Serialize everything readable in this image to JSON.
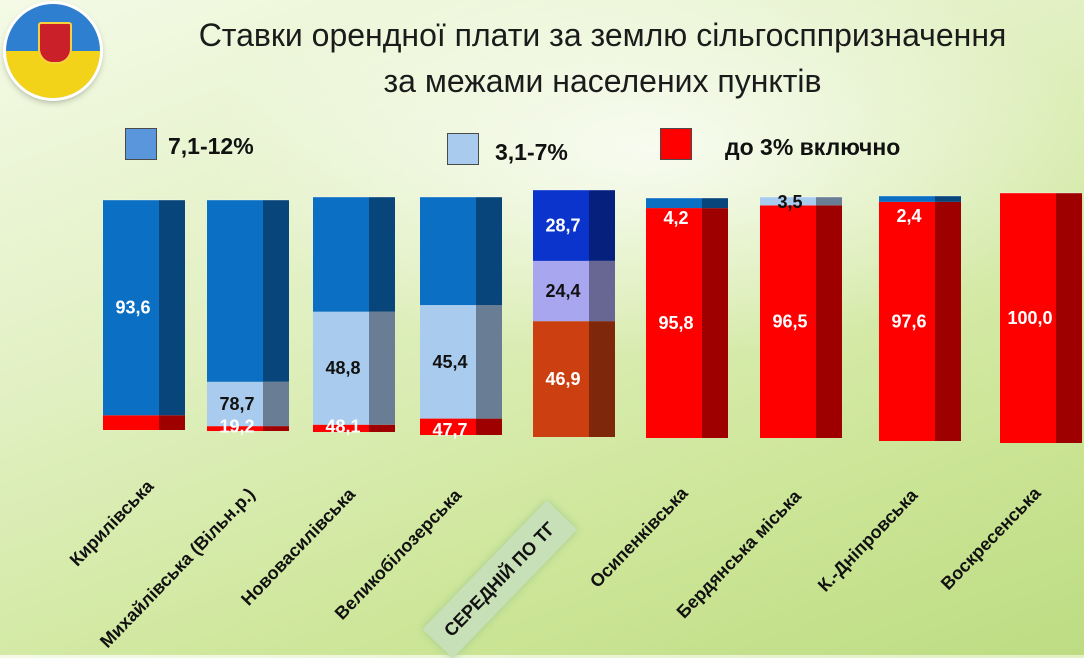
{
  "header": {
    "title_line1": "Ставки орендної плати за землю сільгосппризначення",
    "title_line2": "за межами населених пунктів"
  },
  "colors": {
    "high": "#0b6fc4",
    "mid": "#a9ccee",
    "low": "#ff0000",
    "avg_high": "#0a34cc",
    "avg_mid": "#a7a6ee",
    "avg_low": "#cc3f10"
  },
  "chart_data": {
    "type": "bar",
    "stacked": true,
    "title": "Ставки орендної плати за землю сільгосппризначення за межами населених пунктів",
    "categories": [
      "Кирилівська",
      "Михайлівська (Вільн.р.)",
      "Нововасилівська",
      "Великобілозерська",
      "СЕРЕДНІЙ ПО ТГ",
      "Осипенківська",
      "Бердянська міська",
      "К.-Дніпровська",
      "Воскресенська"
    ],
    "series": [
      {
        "name": "до 3% включно",
        "values": [
          6.4,
          2.1,
          3.1,
          6.9,
          46.9,
          95.8,
          96.5,
          97.6,
          100.0
        ]
      },
      {
        "name": "3,1-7%",
        "values": [
          0,
          19.2,
          48.1,
          47.7,
          24.4,
          0,
          3.5,
          0,
          0
        ]
      },
      {
        "name": "7,1-12%",
        "values": [
          93.6,
          78.7,
          48.8,
          45.4,
          28.7,
          4.2,
          0,
          2.4,
          0
        ]
      }
    ],
    "data_labels": [
      [
        null,
        "93,6"
      ],
      [
        "19,2",
        "78,7"
      ],
      [
        "48,1",
        "48,8"
      ],
      [
        "47,7",
        "45,4"
      ],
      [
        "46,9",
        "24,4",
        "28,7"
      ],
      [
        "95,8",
        "4,2"
      ],
      [
        "96,5",
        "3,5"
      ],
      [
        "97,6",
        "2,4"
      ],
      [
        "100,0"
      ]
    ],
    "legend": [
      {
        "label": "7,1-12%",
        "color": "#5a96dc"
      },
      {
        "label": "3,1-7%",
        "color": "#a9ccee"
      },
      {
        "label": "до 3% включно",
        "color": "#ff0000"
      }
    ],
    "ylim": [
      0,
      100
    ],
    "grid": false
  }
}
